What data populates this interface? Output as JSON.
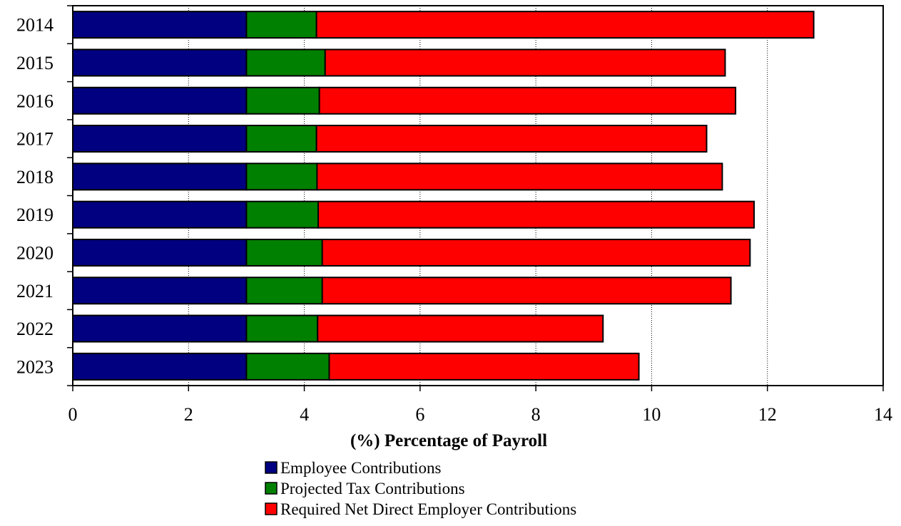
{
  "chart_data": {
    "type": "bar",
    "orientation": "horizontal",
    "stacked": true,
    "title": "",
    "xlabel": "(%) Percentage of Payroll",
    "ylabel": "",
    "xlim": [
      0,
      14
    ],
    "x_ticks": [
      "0",
      "2",
      "4",
      "6",
      "8",
      "10",
      "12",
      "14"
    ],
    "vertical_gridlines": "dotted",
    "legend_position": "bottom",
    "categories": [
      "2014",
      "2015",
      "2016",
      "2017",
      "2018",
      "2019",
      "2020",
      "2021",
      "2022",
      "2023"
    ],
    "series": [
      {
        "name": "Employee Contributions",
        "color": "#000080",
        "values": [
          3.0,
          3.0,
          3.0,
          3.0,
          3.0,
          3.0,
          3.0,
          3.0,
          3.0,
          3.0
        ]
      },
      {
        "name": "Projected Tax Contributions",
        "color": "#008000",
        "values": [
          1.21,
          1.36,
          1.26,
          1.21,
          1.22,
          1.24,
          1.31,
          1.31,
          1.23,
          1.43
        ]
      },
      {
        "name": "Required Net Direct Employer Contributions",
        "color": "#ff0000",
        "values": [
          8.59,
          6.91,
          7.19,
          6.74,
          7.0,
          7.53,
          7.39,
          7.06,
          4.93,
          5.35
        ]
      }
    ]
  }
}
